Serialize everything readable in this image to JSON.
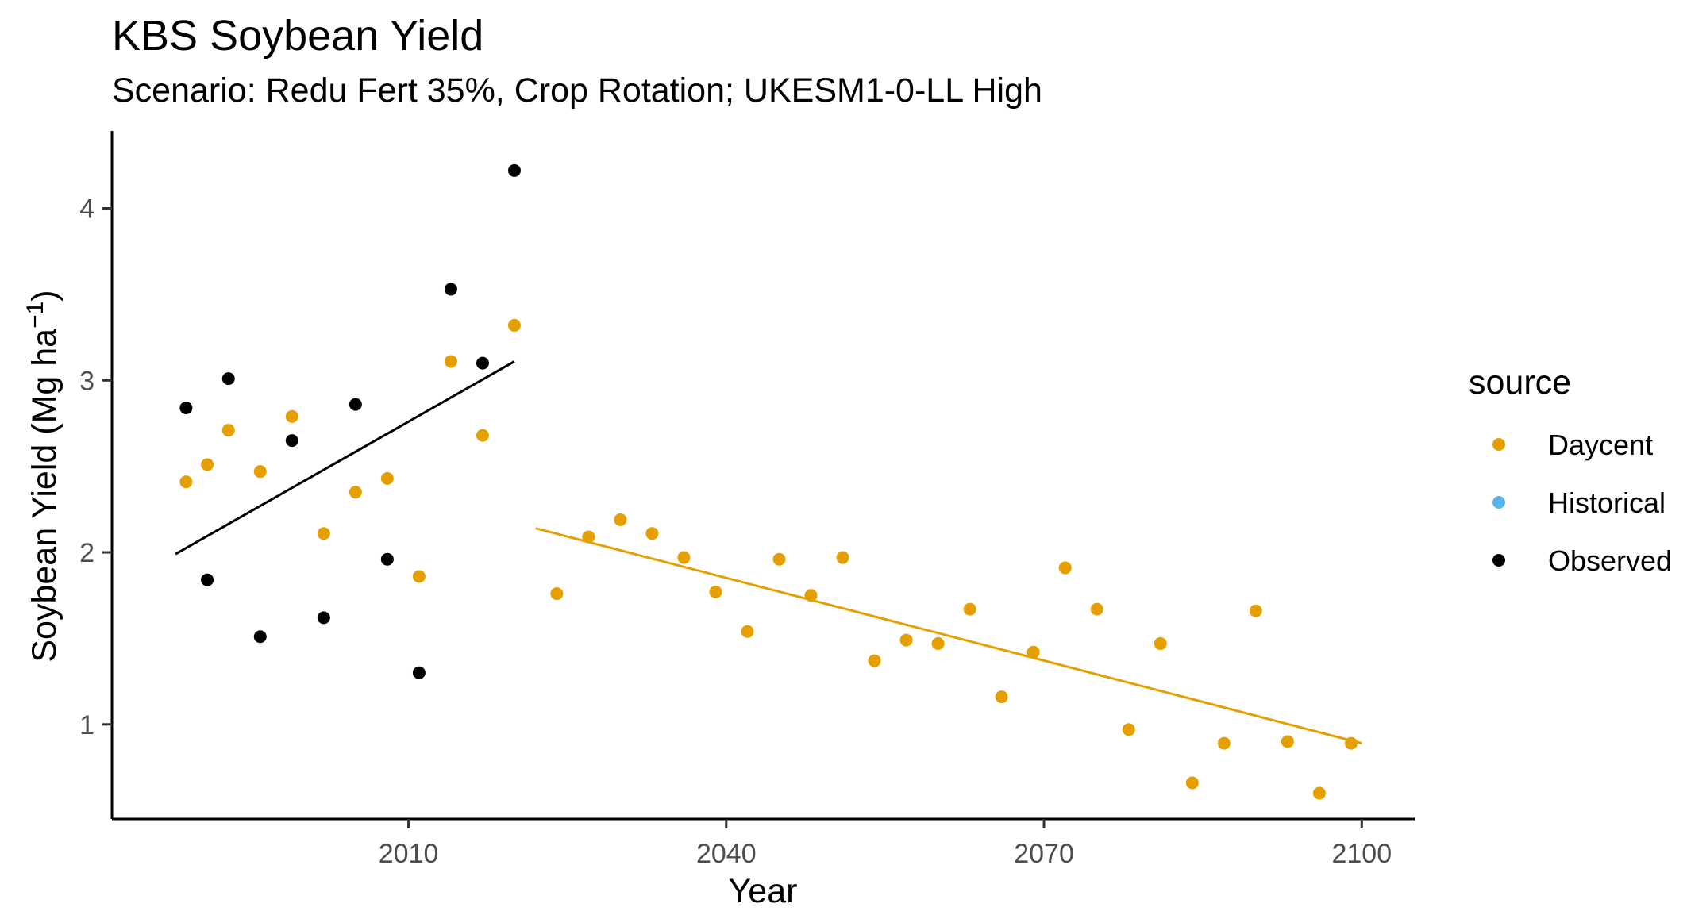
{
  "chart_data": {
    "type": "scatter",
    "title": "KBS Soybean Yield",
    "subtitle": "Scenario: Redu Fert 35%, Crop Rotation; UKESM1-0-LL High",
    "xlabel": "Year",
    "ylabel": "Soybean Yield (Mg ha",
    "ylabel_superscript": "−1",
    "ylabel_close": ")",
    "xlim": [
      1982,
      2105
    ],
    "ylim": [
      0.45,
      4.45
    ],
    "x_ticks": [
      2010,
      2040,
      2070,
      2100
    ],
    "y_ticks": [
      1,
      2,
      3,
      4
    ],
    "grid": false,
    "legend": {
      "title": "source",
      "position": "right",
      "entries": [
        {
          "label": "Daycent",
          "color": "#E69F00"
        },
        {
          "label": "Historical",
          "color": "#56B4E9"
        },
        {
          "label": "Observed",
          "color": "#000000"
        }
      ]
    },
    "series": [
      {
        "name": "Daycent",
        "color": "#E69F00",
        "points": [
          [
            1989,
            2.41
          ],
          [
            1991,
            2.51
          ],
          [
            1993,
            2.71
          ],
          [
            1996,
            2.47
          ],
          [
            1999,
            2.79
          ],
          [
            2002,
            2.11
          ],
          [
            2005,
            2.35
          ],
          [
            2008,
            2.43
          ],
          [
            2011,
            1.86
          ],
          [
            2014,
            3.11
          ],
          [
            2017,
            2.68
          ],
          [
            2020,
            3.32
          ],
          [
            2024,
            1.76
          ],
          [
            2027,
            2.09
          ],
          [
            2030,
            2.19
          ],
          [
            2033,
            2.11
          ],
          [
            2036,
            1.97
          ],
          [
            2039,
            1.77
          ],
          [
            2042,
            1.54
          ],
          [
            2045,
            1.96
          ],
          [
            2048,
            1.75
          ],
          [
            2051,
            1.97
          ],
          [
            2054,
            1.37
          ],
          [
            2057,
            1.49
          ],
          [
            2060,
            1.47
          ],
          [
            2063,
            1.67
          ],
          [
            2066,
            1.16
          ],
          [
            2069,
            1.42
          ],
          [
            2072,
            1.91
          ],
          [
            2075,
            1.67
          ],
          [
            2078,
            0.97
          ],
          [
            2081,
            1.47
          ],
          [
            2084,
            0.66
          ],
          [
            2087,
            0.89
          ],
          [
            2090,
            1.66
          ],
          [
            2093,
            0.9
          ],
          [
            2096,
            0.6
          ],
          [
            2099,
            0.89
          ]
        ]
      },
      {
        "name": "Historical",
        "color": "#56B4E9",
        "points": []
      },
      {
        "name": "Observed",
        "color": "#000000",
        "points": [
          [
            1989,
            2.84
          ],
          [
            1991,
            1.84
          ],
          [
            1993,
            3.01
          ],
          [
            1996,
            1.51
          ],
          [
            1999,
            2.65
          ],
          [
            2002,
            1.62
          ],
          [
            2005,
            2.86
          ],
          [
            2008,
            1.96
          ],
          [
            2011,
            1.3
          ],
          [
            2014,
            3.53
          ],
          [
            2017,
            3.1
          ],
          [
            2020,
            4.22
          ]
        ]
      }
    ],
    "trend_lines": [
      {
        "series": "Observed",
        "color": "#000000",
        "from": [
          1988,
          1.99
        ],
        "to": [
          2020,
          3.11
        ]
      },
      {
        "series": "Daycent",
        "color": "#E69F00",
        "from": [
          2022,
          2.14
        ],
        "to": [
          2100,
          0.89
        ]
      }
    ]
  }
}
